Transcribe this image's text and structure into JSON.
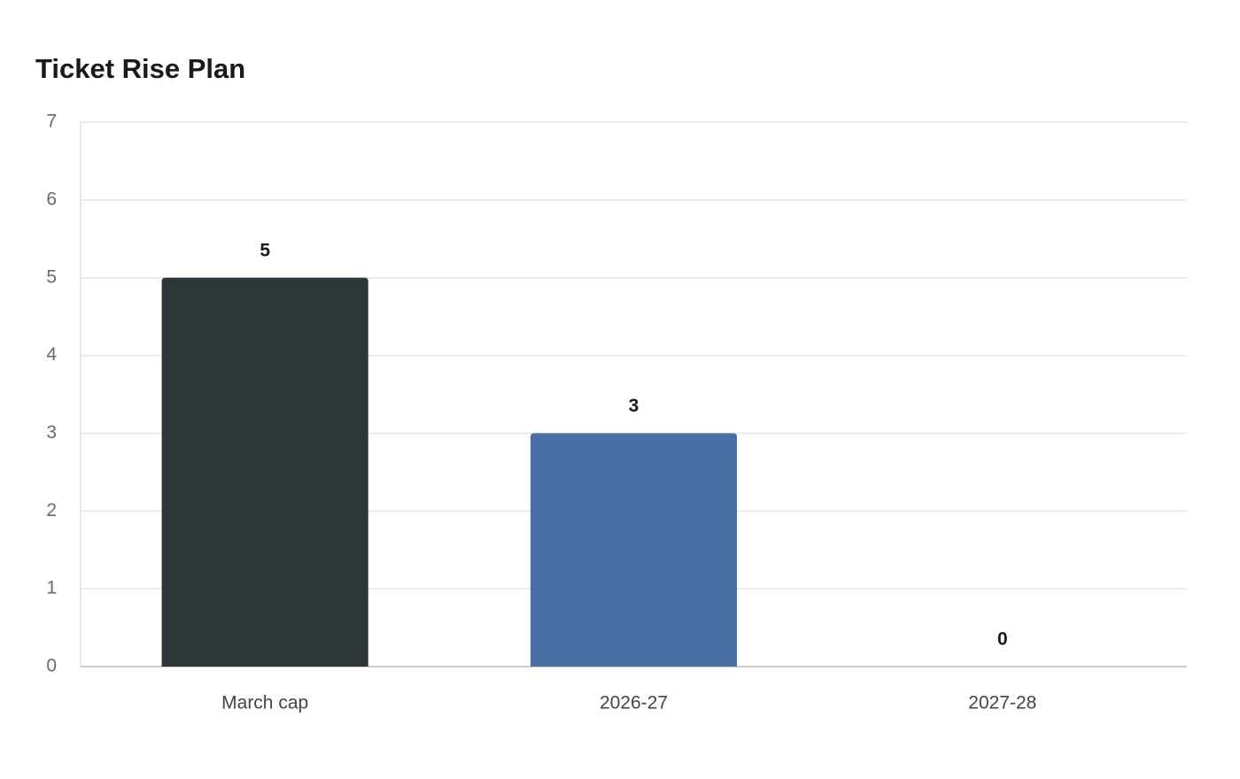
{
  "chart_data": {
    "type": "bar",
    "title": "Ticket Rise Plan",
    "categories": [
      "March cap",
      "2026-27",
      "2027-28"
    ],
    "values": [
      5,
      3,
      0
    ],
    "colors": [
      "#2d3538",
      "#4a6fa5",
      "#8fa9cc"
    ],
    "ylim": [
      0,
      7
    ],
    "yticks": [
      0,
      1,
      2,
      3,
      4,
      5,
      6,
      7
    ],
    "grid": true
  }
}
